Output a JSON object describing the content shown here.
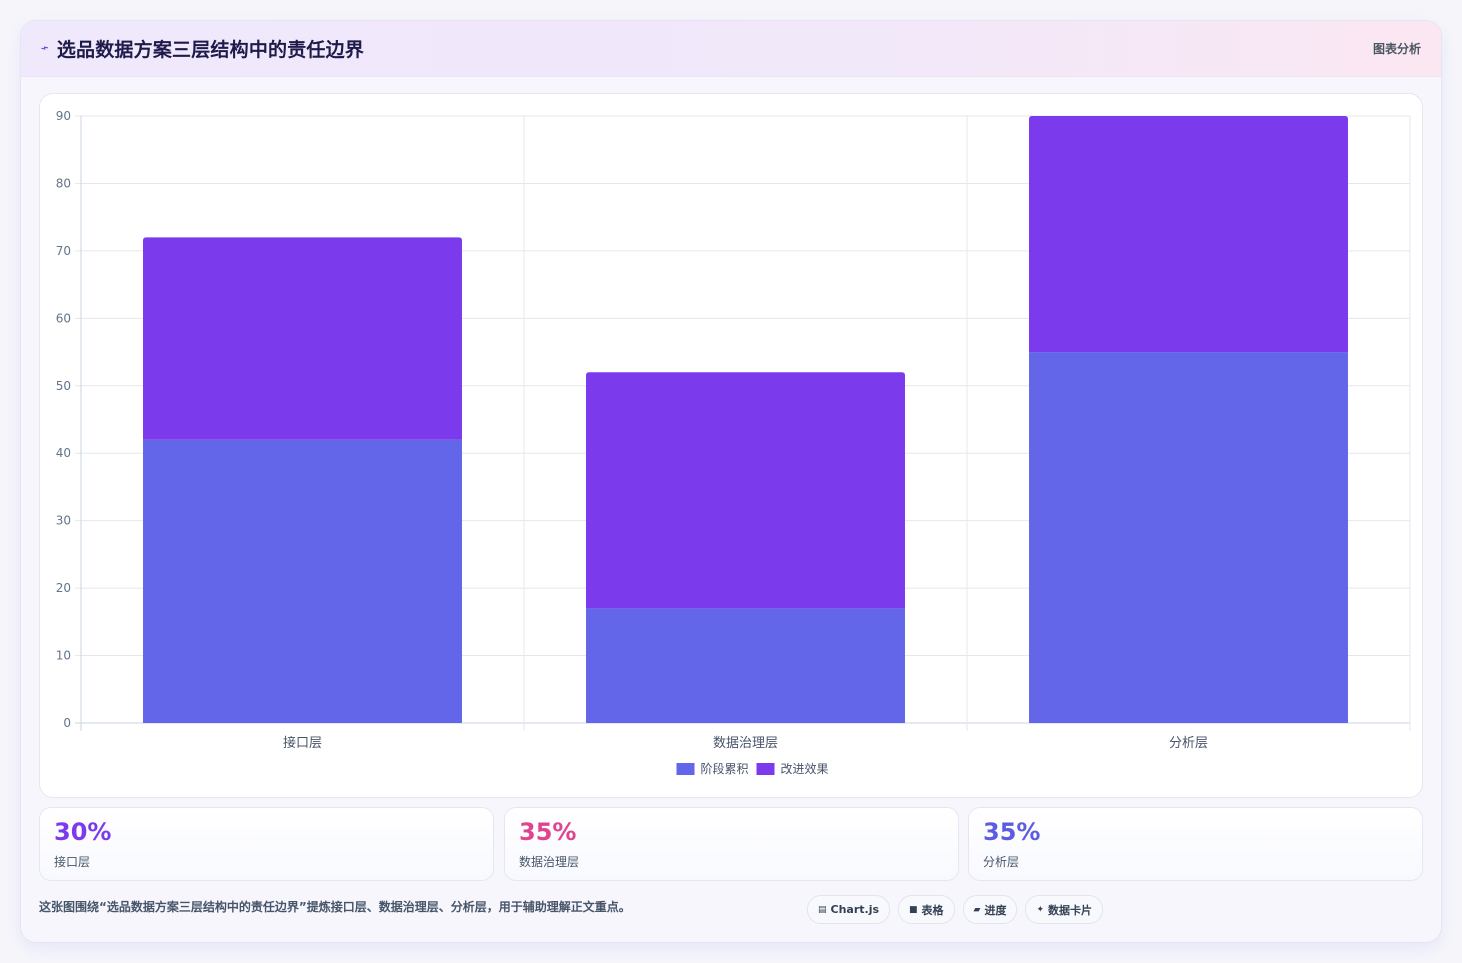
{
  "header": {
    "title": "选品数据方案三层结构中的责任边界",
    "icon": "chart-line-icon",
    "link_label": "图表分析"
  },
  "chart_data": {
    "type": "bar",
    "stacked": true,
    "categories": [
      "接口层",
      "数据治理层",
      "分析层"
    ],
    "series": [
      {
        "name": "阶段累积",
        "values": [
          42,
          17,
          55
        ],
        "color": "#6366e8"
      },
      {
        "name": "改进效果",
        "values": [
          30,
          35,
          35
        ],
        "color": "#7c3aed"
      }
    ],
    "ylim": [
      0,
      90
    ],
    "yticks": [
      0,
      10,
      20,
      30,
      40,
      50,
      60,
      70,
      80,
      90
    ],
    "grid": true,
    "legend": "bottom"
  },
  "stats": [
    {
      "value": "30%",
      "label": "接口层",
      "color": "#7c3aed"
    },
    {
      "value": "35%",
      "label": "数据治理层",
      "color": "#e0448f"
    },
    {
      "value": "35%",
      "label": "分析层",
      "color": "#5b5ce2"
    }
  ],
  "footnote": "这张图围绕“选品数据方案三层结构中的责任边界”提炼接口层、数据治理层、分析层，用于辅助理解正文重点。",
  "chips": [
    {
      "icon": "▤",
      "label": "Chart.js"
    },
    {
      "icon": "■",
      "label": "表格"
    },
    {
      "icon": "▰",
      "label": "进度"
    },
    {
      "icon": "✦",
      "label": "数据卡片"
    }
  ]
}
